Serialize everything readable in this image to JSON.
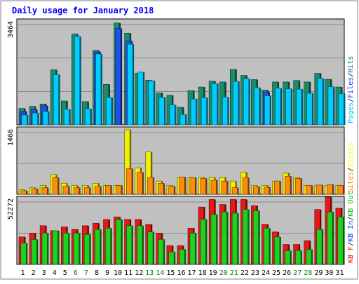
{
  "chart_data": [
    {
      "type": "bar",
      "title": "Daily usage for January 2018",
      "ymax_label": "3464",
      "ylim": [
        0,
        3464
      ],
      "grid": true,
      "legend": [
        {
          "label": "Pages",
          "color": "#00c0ff"
        },
        {
          "label": "/",
          "color": "#000000"
        },
        {
          "label": "Files",
          "color": "#0040ff"
        },
        {
          "label": "/",
          "color": "#000000"
        },
        {
          "label": "Hits",
          "color": "#008080"
        }
      ],
      "categories": [
        "1",
        "2",
        "3",
        "4",
        "5",
        "6",
        "7",
        "8",
        "9",
        "10",
        "11",
        "12",
        "13",
        "14",
        "15",
        "16",
        "17",
        "18",
        "19",
        "20",
        "21",
        "22",
        "23",
        "24",
        "25",
        "26",
        "27",
        "28",
        "29",
        "30",
        "31"
      ],
      "series": [
        {
          "name": "Hits",
          "color": "#1a8c6a",
          "values": [
            550,
            620,
            700,
            1850,
            800,
            3050,
            780,
            2500,
            1360,
            3420,
            3080,
            1730,
            1500,
            1070,
            990,
            590,
            1150,
            1270,
            1470,
            1440,
            1860,
            1660,
            1520,
            1170,
            1440,
            1440,
            1490,
            1440,
            1730,
            1530,
            1270
          ]
        },
        {
          "name": "Files",
          "color": "#2050e8",
          "values": [
            450,
            510,
            640,
            0,
            0,
            0,
            0,
            2450,
            0,
            3240,
            2820,
            0,
            0,
            0,
            0,
            0,
            0,
            0,
            0,
            0,
            0,
            0,
            0,
            1100,
            0,
            0,
            0,
            0,
            0,
            0,
            0
          ]
        },
        {
          "name": "Pages",
          "color": "#00ccff",
          "values": [
            330,
            400,
            450,
            1690,
            520,
            2970,
            540,
            2380,
            920,
            0,
            2710,
            1770,
            1480,
            920,
            670,
            350,
            870,
            910,
            1380,
            930,
            1460,
            1550,
            1250,
            980,
            1230,
            1210,
            1200,
            1060,
            1560,
            1280,
            1050
          ]
        }
      ]
    },
    {
      "type": "bar",
      "ymax_label": "1466",
      "ylim": [
        0,
        1466
      ],
      "grid": true,
      "legend": [
        {
          "label": "Sites",
          "color": "#ff8000"
        },
        {
          "label": "/",
          "color": "#000000"
        },
        {
          "label": "Visits",
          "color": "#ffff00"
        }
      ],
      "categories": [
        "1",
        "2",
        "3",
        "4",
        "5",
        "6",
        "7",
        "8",
        "9",
        "10",
        "11",
        "12",
        "13",
        "14",
        "15",
        "16",
        "17",
        "18",
        "19",
        "20",
        "21",
        "22",
        "23",
        "24",
        "25",
        "26",
        "27",
        "28",
        "29",
        "30",
        "31"
      ],
      "series": [
        {
          "name": "Visits",
          "color": "#f0f000",
          "values": [
            100,
            150,
            200,
            450,
            250,
            200,
            200,
            250,
            200,
            200,
            1466,
            600,
            960,
            300,
            200,
            380,
            380,
            380,
            380,
            380,
            300,
            500,
            200,
            200,
            300,
            480,
            380,
            200,
            200,
            200,
            200
          ]
        },
        {
          "name": "Sites",
          "color": "#ff8c10",
          "values": [
            80,
            120,
            150,
            380,
            180,
            150,
            150,
            180,
            200,
            200,
            580,
            500,
            380,
            250,
            180,
            390,
            380,
            360,
            320,
            300,
            150,
            380,
            170,
            160,
            300,
            410,
            360,
            200,
            210,
            220,
            200
          ]
        }
      ]
    },
    {
      "type": "bar",
      "ymax_label": "52272",
      "ylim": [
        0,
        52272
      ],
      "grid": true,
      "legend": [
        {
          "label": "KB F",
          "color": "#ff0000"
        },
        {
          "label": "/",
          "color": "#000000"
        },
        {
          "label": "KB In",
          "color": "#0040ff"
        },
        {
          "label": "/",
          "color": "#000000"
        },
        {
          "label": "KB Out",
          "color": "#00c000"
        }
      ],
      "categories": [
        "1",
        "2",
        "3",
        "4",
        "5",
        "6",
        "7",
        "8",
        "9",
        "10",
        "11",
        "12",
        "13",
        "14",
        "15",
        "16",
        "17",
        "18",
        "19",
        "20",
        "21",
        "22",
        "23",
        "24",
        "25",
        "26",
        "27",
        "28",
        "29",
        "30",
        "31"
      ],
      "series": [
        {
          "name": "KB F",
          "color": "#e81818",
          "values": [
            22000,
            25000,
            31000,
            27000,
            30000,
            28000,
            31000,
            33000,
            36000,
            38000,
            36000,
            36000,
            32000,
            25000,
            15000,
            15000,
            29000,
            46000,
            52000,
            48000,
            52000,
            52000,
            47000,
            32000,
            26000,
            16000,
            16000,
            19000,
            44000,
            54000,
            45000
          ]
        },
        {
          "name": "KB Out",
          "color": "#20d020",
          "values": [
            17000,
            20000,
            25000,
            27000,
            25000,
            25000,
            24000,
            28000,
            29000,
            36000,
            31000,
            31000,
            26000,
            20000,
            10000,
            12000,
            25000,
            36000,
            40000,
            42000,
            41000,
            44000,
            43000,
            29000,
            22000,
            11000,
            11000,
            12000,
            28000,
            42000,
            38000
          ]
        }
      ]
    }
  ],
  "x_labels": [
    {
      "text": "1",
      "weekend": false
    },
    {
      "text": "2",
      "weekend": false
    },
    {
      "text": "3",
      "weekend": false
    },
    {
      "text": "4",
      "weekend": false
    },
    {
      "text": "5",
      "weekend": false
    },
    {
      "text": "6",
      "weekend": true
    },
    {
      "text": "7",
      "weekend": true
    },
    {
      "text": "8",
      "weekend": false
    },
    {
      "text": "9",
      "weekend": false
    },
    {
      "text": "10",
      "weekend": false
    },
    {
      "text": "11",
      "weekend": false
    },
    {
      "text": "12",
      "weekend": false
    },
    {
      "text": "13",
      "weekend": true
    },
    {
      "text": "14",
      "weekend": true
    },
    {
      "text": "15",
      "weekend": false
    },
    {
      "text": "16",
      "weekend": false
    },
    {
      "text": "17",
      "weekend": false
    },
    {
      "text": "18",
      "weekend": false
    },
    {
      "text": "19",
      "weekend": false
    },
    {
      "text": "20",
      "weekend": true
    },
    {
      "text": "21",
      "weekend": true
    },
    {
      "text": "22",
      "weekend": false
    },
    {
      "text": "23",
      "weekend": false
    },
    {
      "text": "24",
      "weekend": false
    },
    {
      "text": "25",
      "weekend": false
    },
    {
      "text": "26",
      "weekend": false
    },
    {
      "text": "27",
      "weekend": true
    },
    {
      "text": "28",
      "weekend": true
    },
    {
      "text": "29",
      "weekend": false
    },
    {
      "text": "30",
      "weekend": false
    },
    {
      "text": "31",
      "weekend": false
    }
  ],
  "colors": {
    "title": "#0000ff",
    "panel_bg": "#c0c0c0",
    "page_bg": "#ffffff",
    "border": "#000000",
    "weekday_label": "#000000",
    "weekend_label": "#008000"
  }
}
